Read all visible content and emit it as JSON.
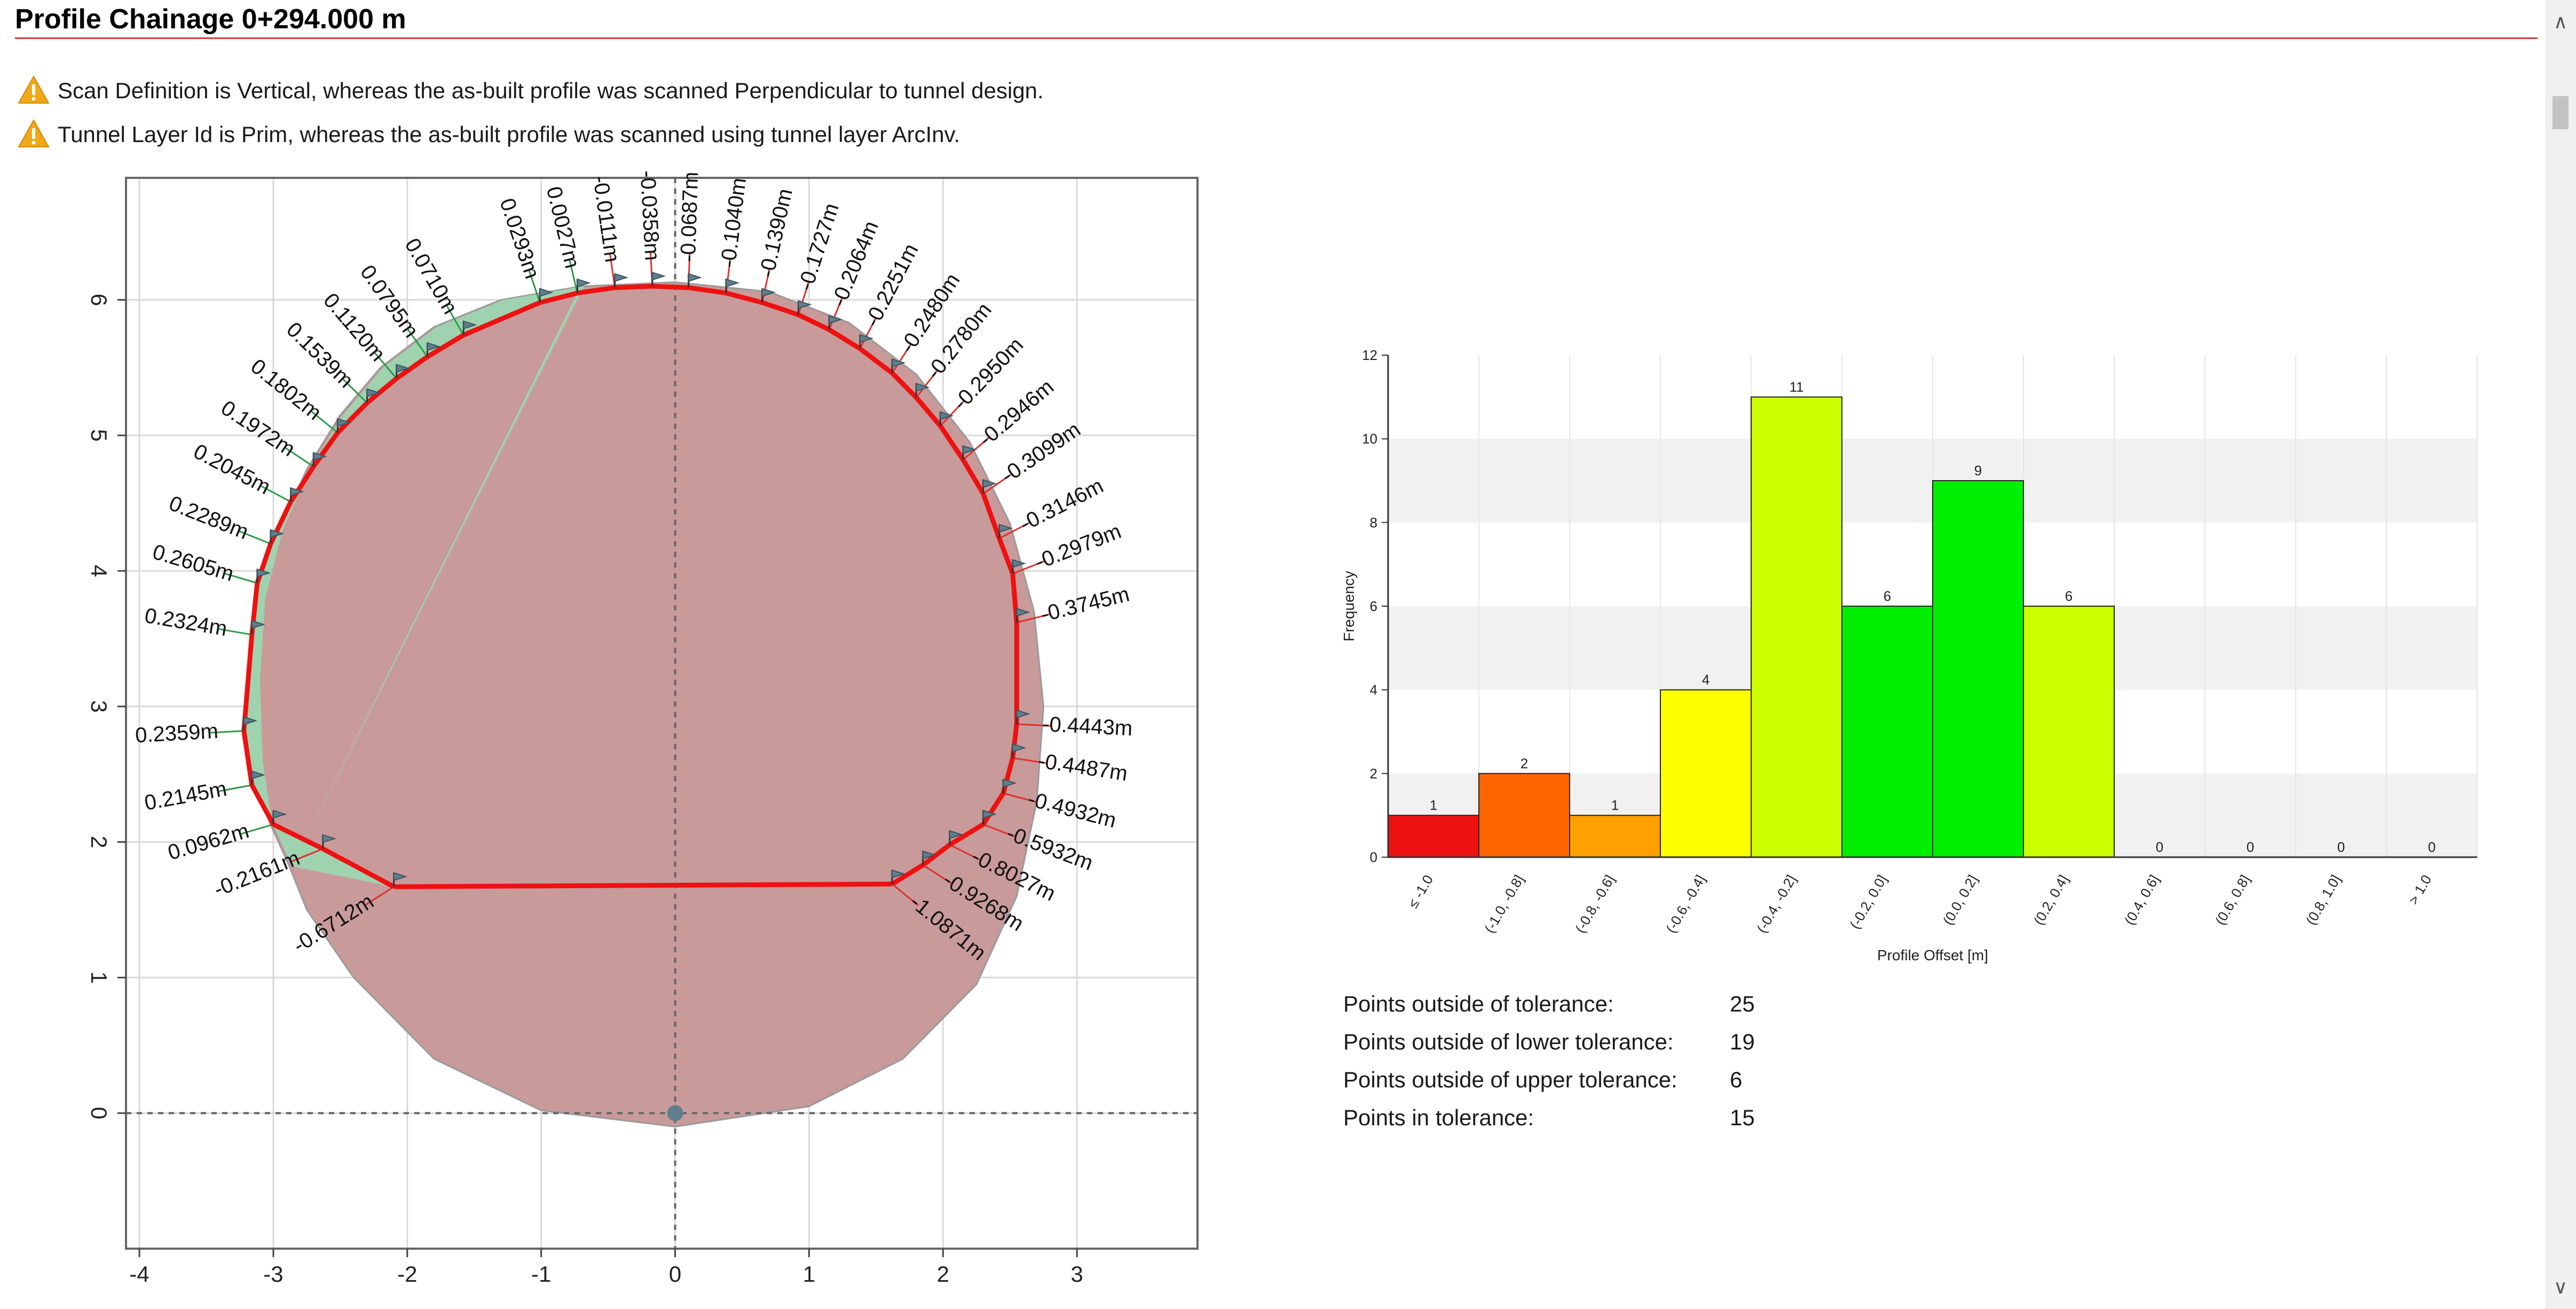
{
  "header": {
    "title": "Profile Chainage 0+294.000 m"
  },
  "warnings": [
    {
      "icon": "warning-icon",
      "text": "Scan Definition is Vertical, whereas the as-built profile was scanned Perpendicular to tunnel design."
    },
    {
      "icon": "warning-icon",
      "text": "Tunnel Layer Id is Prim, whereas the as-built profile was scanned using tunnel layer ArcInv."
    }
  ],
  "colors": {
    "asbuilt": "#ee1111",
    "design": "#9a9a9a",
    "underbreak_fill": "#9fd3b0",
    "overbreak_fill": "#c99a9a",
    "histogram_bins": [
      "#ee1111",
      "#ff6600",
      "#ffa000",
      "#ffff00",
      "#ccff00",
      "#00ee00",
      "#00ee00",
      "#ccff00",
      "#ccff00",
      "#ccff00",
      "#ccff00",
      "#ccff00"
    ]
  },
  "chart_data": [
    {
      "type": "scatter",
      "xlim": [
        -4.1,
        3.9
      ],
      "ylim": [
        -1.0,
        6.9
      ],
      "xticks": [
        -4,
        -3,
        -2,
        -1,
        0,
        1,
        2,
        3
      ],
      "yticks": [
        0,
        1,
        2,
        3,
        4,
        5,
        6
      ],
      "grid": true,
      "origin_marker": [
        0,
        0
      ],
      "points": [
        {
          "x": -2.1,
          "y": 1.67,
          "label": "-0.6712m"
        },
        {
          "x": -2.63,
          "y": 1.95,
          "label": "-0.2161m"
        },
        {
          "x": -3.0,
          "y": 2.13,
          "label": "0.0962m"
        },
        {
          "x": -3.16,
          "y": 2.42,
          "label": "0.2145m"
        },
        {
          "x": -3.22,
          "y": 2.82,
          "label": "0.2359m"
        },
        {
          "x": -3.16,
          "y": 3.53,
          "label": "0.2324m"
        },
        {
          "x": -3.12,
          "y": 3.91,
          "label": "0.2605m"
        },
        {
          "x": -3.02,
          "y": 4.2,
          "label": "0.2289m"
        },
        {
          "x": -2.87,
          "y": 4.51,
          "label": "0.2045m"
        },
        {
          "x": -2.7,
          "y": 4.77,
          "label": "0.1972m"
        },
        {
          "x": -2.52,
          "y": 5.02,
          "label": "0.1802m"
        },
        {
          "x": -2.3,
          "y": 5.24,
          "label": "0.1539m"
        },
        {
          "x": -2.08,
          "y": 5.42,
          "label": "0.1120m"
        },
        {
          "x": -1.85,
          "y": 5.58,
          "label": "0.0795m"
        },
        {
          "x": -1.58,
          "y": 5.74,
          "label": "0.0710m"
        },
        {
          "x": -1.01,
          "y": 5.98,
          "label": "0.0293m"
        },
        {
          "x": -0.73,
          "y": 6.05,
          "label": "0.0027m"
        },
        {
          "x": -0.45,
          "y": 6.09,
          "label": "-0.0111m"
        },
        {
          "x": -0.17,
          "y": 6.1,
          "label": "-0.0358m"
        },
        {
          "x": 0.1,
          "y": 6.09,
          "label": "-0.0687m"
        },
        {
          "x": 0.38,
          "y": 6.05,
          "label": "-0.1040m"
        },
        {
          "x": 0.65,
          "y": 5.98,
          "label": "-0.1390m"
        },
        {
          "x": 0.92,
          "y": 5.89,
          "label": "-0.1727m"
        },
        {
          "x": 1.15,
          "y": 5.78,
          "label": "-0.2064m"
        },
        {
          "x": 1.38,
          "y": 5.64,
          "label": "-0.2251m"
        },
        {
          "x": 1.62,
          "y": 5.46,
          "label": "-0.2480m"
        },
        {
          "x": 1.8,
          "y": 5.28,
          "label": "-0.2780m"
        },
        {
          "x": 1.98,
          "y": 5.07,
          "label": "-0.2950m"
        },
        {
          "x": 2.15,
          "y": 4.82,
          "label": "-0.2946m"
        },
        {
          "x": 2.3,
          "y": 4.57,
          "label": "-0.3099m"
        },
        {
          "x": 2.42,
          "y": 4.24,
          "label": "-0.3146m"
        },
        {
          "x": 2.52,
          "y": 3.98,
          "label": "-0.2979m"
        },
        {
          "x": 2.55,
          "y": 3.62,
          "label": "-0.3745m"
        },
        {
          "x": 2.55,
          "y": 2.87,
          "label": "-0.4443m"
        },
        {
          "x": 2.52,
          "y": 2.62,
          "label": "-0.4487m"
        },
        {
          "x": 2.45,
          "y": 2.36,
          "label": "-0.4932m"
        },
        {
          "x": 2.3,
          "y": 2.13,
          "label": "-0.5932m"
        },
        {
          "x": 2.05,
          "y": 1.98,
          "label": "-0.8027m"
        },
        {
          "x": 1.85,
          "y": 1.83,
          "label": "-0.9268m"
        },
        {
          "x": 1.62,
          "y": 1.69,
          "label": "-1.0871m"
        }
      ],
      "design_profile": [
        [
          -2.88,
          1.82
        ],
        [
          -3.03,
          2.15
        ],
        [
          -3.1,
          2.6
        ],
        [
          -3.12,
          3.2
        ],
        [
          -3.08,
          3.8
        ],
        [
          -2.95,
          4.3
        ],
        [
          -2.75,
          4.75
        ],
        [
          -2.5,
          5.15
        ],
        [
          -2.2,
          5.5
        ],
        [
          -1.8,
          5.8
        ],
        [
          -1.3,
          6.0
        ],
        [
          -0.7,
          6.1
        ],
        [
          0.0,
          6.13
        ],
        [
          0.7,
          6.06
        ],
        [
          1.3,
          5.83
        ],
        [
          1.8,
          5.45
        ],
        [
          2.2,
          4.95
        ],
        [
          2.5,
          4.35
        ],
        [
          2.68,
          3.7
        ],
        [
          2.75,
          3.0
        ],
        [
          2.7,
          2.3
        ],
        [
          2.55,
          1.6
        ],
        [
          2.25,
          0.95
        ],
        [
          1.7,
          0.4
        ],
        [
          1.0,
          0.05
        ],
        [
          0.0,
          -0.1
        ],
        [
          -1.0,
          0.02
        ],
        [
          -1.8,
          0.4
        ],
        [
          -2.4,
          1.0
        ],
        [
          -2.75,
          1.5
        ],
        [
          -2.88,
          1.82
        ]
      ],
      "asbuilt_invert": [
        [
          -2.1,
          1.67
        ],
        [
          1.62,
          1.69
        ]
      ]
    },
    {
      "type": "bar",
      "categories": [
        "≤ -1.0",
        "(-1.0, -0.8]",
        "(-0.8, -0.6]",
        "(-0.6, -0.4]",
        "(-0.4, -0.2]",
        "(-0.2, 0.0]",
        "(0.0, 0.2]",
        "(0.2, 0.4]",
        "(0.4, 0.6]",
        "(0.6, 0.8]",
        "(0.8, 1.0]",
        "> 1.0"
      ],
      "values": [
        1,
        2,
        1,
        4,
        11,
        6,
        9,
        6,
        0,
        0,
        0,
        0
      ],
      "xlabel": "Profile Offset [m]",
      "ylabel": "Frequency",
      "ylim": [
        0,
        12
      ],
      "yticks": [
        0,
        2,
        4,
        6,
        8,
        10,
        12
      ],
      "grid": true
    }
  ],
  "stats": [
    {
      "label": "Points outside of tolerance:",
      "value": "25"
    },
    {
      "label": "Points outside of lower tolerance:",
      "value": "19"
    },
    {
      "label": "Points outside of upper tolerance:",
      "value": "6"
    },
    {
      "label": "Points in tolerance:",
      "value": "15"
    }
  ]
}
